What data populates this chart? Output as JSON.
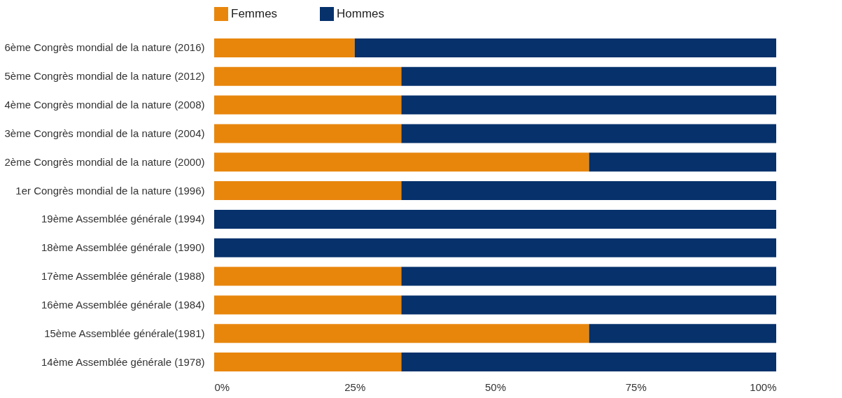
{
  "chart_data": {
    "type": "bar",
    "orientation": "horizontal",
    "stacked": true,
    "legend": "top",
    "grid": false,
    "categories": [
      "6ème Congrès mondial de la nature (2016)",
      "5ème Congrès mondial de la nature (2012)",
      "4ème Congrès mondial de la nature (2008)",
      "3ème Congrès mondial de la nature (2004)",
      "2ème Congrès mondial de la nature (2000)",
      "1er Congrès mondial de la nature (1996)",
      "19ème Assemblée générale (1994)",
      "18ème Assemblée générale (1990)",
      "17ème Assemblée générale (1988)",
      "16ème Assemblée générale (1984)",
      "15ème Assemblée générale(1981)",
      "14ème Assemblée générale (1978)"
    ],
    "series": [
      {
        "name": "Femmes",
        "color": "#e8860c",
        "values": [
          25,
          33.3,
          33.3,
          33.3,
          66.7,
          33.3,
          0,
          0,
          33.3,
          33.3,
          66.7,
          33.3
        ]
      },
      {
        "name": "Hommes",
        "color": "#06316b",
        "values": [
          75,
          66.7,
          66.7,
          66.7,
          33.3,
          66.7,
          100,
          100,
          66.7,
          66.7,
          33.3,
          66.7
        ]
      }
    ],
    "xlim": [
      0,
      100
    ],
    "xticks": [
      {
        "value": 0,
        "label": "0%"
      },
      {
        "value": 25,
        "label": "25%"
      },
      {
        "value": 50,
        "label": "50%"
      },
      {
        "value": 75,
        "label": "75%"
      },
      {
        "value": 100,
        "label": "100%"
      }
    ]
  }
}
